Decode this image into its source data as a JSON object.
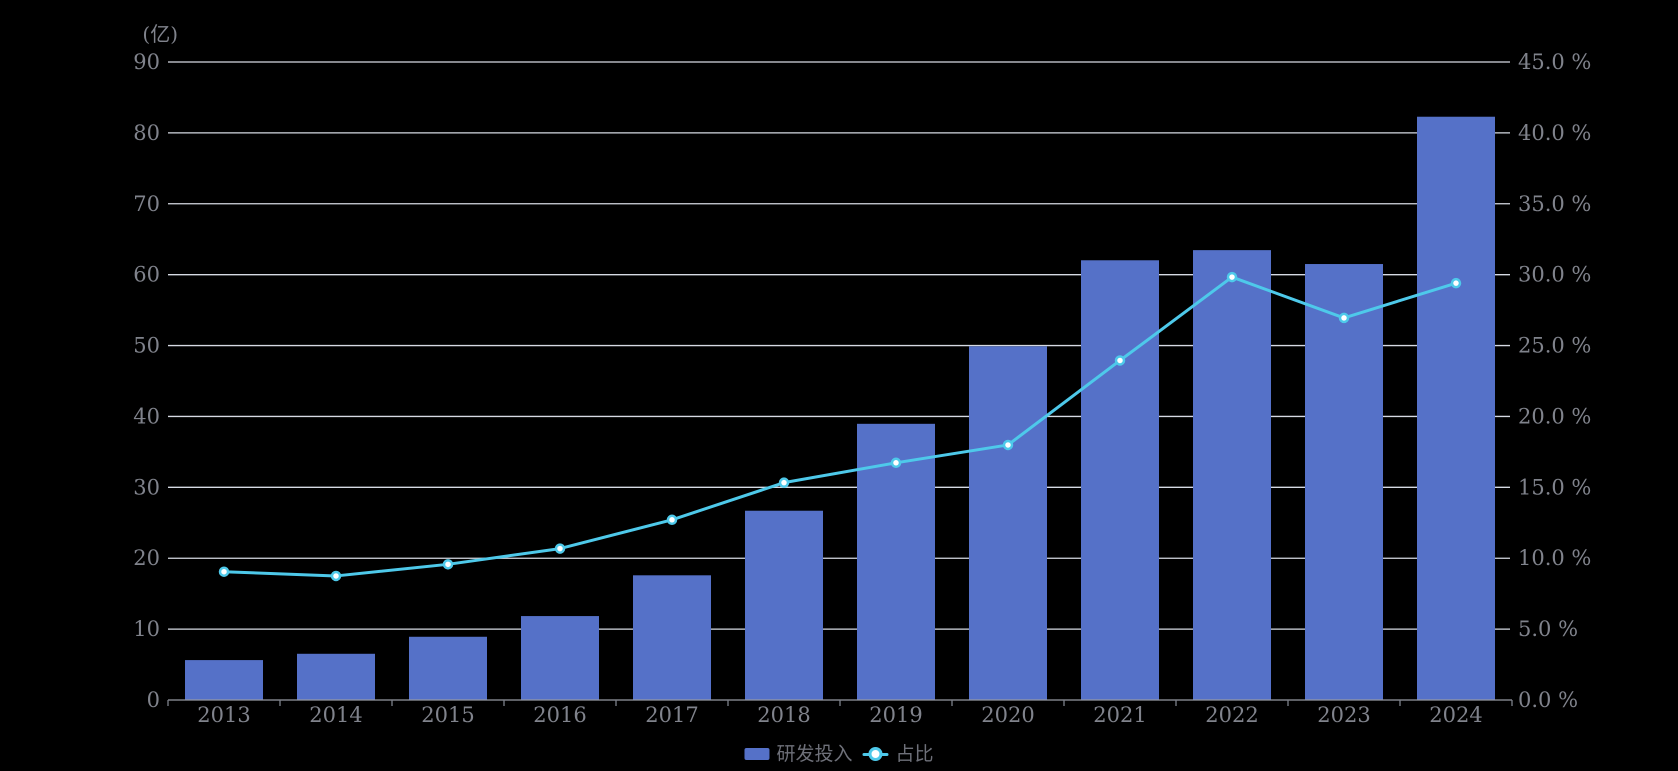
{
  "chart_data": {
    "type": "bar",
    "subtype": "combo-bar-line-dual-axis",
    "title": "",
    "categories": [
      "2013",
      "2014",
      "2015",
      "2016",
      "2017",
      "2018",
      "2019",
      "2020",
      "2021",
      "2022",
      "2023",
      "2024"
    ],
    "series": [
      {
        "name": "研发投入",
        "type": "bar",
        "axis": "left",
        "unit": "亿",
        "color": "#5571c8",
        "values": [
          5.63,
          6.52,
          8.92,
          11.84,
          17.59,
          26.7,
          38.96,
          49.89,
          62.03,
          63.46,
          61.5,
          82.28
        ]
      },
      {
        "name": "占比",
        "type": "line",
        "axis": "right",
        "unit": "%",
        "color": "#4ec9ea",
        "marker_fill": "#ffffff",
        "values": [
          9.05,
          8.75,
          9.57,
          10.68,
          12.71,
          15.33,
          16.73,
          17.99,
          23.95,
          29.83,
          26.95,
          29.4
        ]
      }
    ],
    "left_axis": {
      "name": "(亿)",
      "min": 0,
      "max": 90,
      "step": 10,
      "tick_labels": [
        "0",
        "10",
        "20",
        "30",
        "40",
        "50",
        "60",
        "70",
        "80",
        "90"
      ]
    },
    "right_axis": {
      "min": 0,
      "max": 45,
      "step": 5,
      "tick_labels": [
        "0.0 %",
        "5.0 %",
        "10.0 %",
        "15.0 %",
        "20.0 %",
        "25.0 %",
        "30.0 %",
        "35.0 %",
        "40.0 %",
        "45.0 %"
      ]
    },
    "x_axis": {
      "tick_labels": [
        "2013",
        "2014",
        "2015",
        "2016",
        "2017",
        "2018",
        "2019",
        "2020",
        "2021",
        "2022",
        "2023",
        "2024"
      ]
    },
    "grid": "on",
    "legend_position": "bottom-center",
    "colors": {
      "background": "#000000",
      "grid_line": "#d6dae3",
      "axis_line": "#969aa3",
      "tick": "#7d818a",
      "axis_text": "#80838c",
      "legend_text": "#6e7079"
    }
  }
}
